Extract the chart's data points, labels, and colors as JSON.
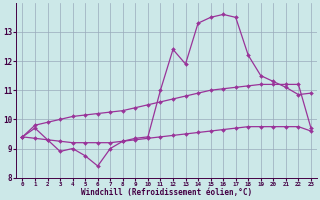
{
  "xlabel": "Windchill (Refroidissement éolien,°C)",
  "x": [
    0,
    1,
    2,
    3,
    4,
    5,
    6,
    7,
    8,
    9,
    10,
    11,
    12,
    13,
    14,
    15,
    16,
    17,
    18,
    19,
    20,
    21,
    22,
    23
  ],
  "line1": [
    9.4,
    9.7,
    9.3,
    8.9,
    9.0,
    8.75,
    8.4,
    9.0,
    9.25,
    9.35,
    9.4,
    11.0,
    12.4,
    11.9,
    13.3,
    13.5,
    13.6,
    13.5,
    12.2,
    11.5,
    11.3,
    11.1,
    10.85,
    10.9
  ],
  "line2_upper": [
    9.4,
    9.8,
    9.9,
    10.0,
    10.1,
    10.15,
    10.2,
    10.25,
    10.3,
    10.4,
    10.5,
    10.6,
    10.7,
    10.8,
    10.9,
    11.0,
    11.05,
    11.1,
    11.15,
    11.2,
    11.2,
    11.2,
    11.2,
    9.7
  ],
  "line3_lower": [
    9.4,
    9.35,
    9.3,
    9.25,
    9.2,
    9.2,
    9.2,
    9.2,
    9.25,
    9.3,
    9.35,
    9.4,
    9.45,
    9.5,
    9.55,
    9.6,
    9.65,
    9.7,
    9.75,
    9.75,
    9.75,
    9.75,
    9.75,
    9.6
  ],
  "line_color": "#993399",
  "background_color": "#cce8e8",
  "grid_color": "#99aabb",
  "ylim": [
    8.0,
    14.0
  ],
  "yticks": [
    8,
    9,
    10,
    11,
    12,
    13
  ],
  "xlim": [
    -0.5,
    23.5
  ]
}
